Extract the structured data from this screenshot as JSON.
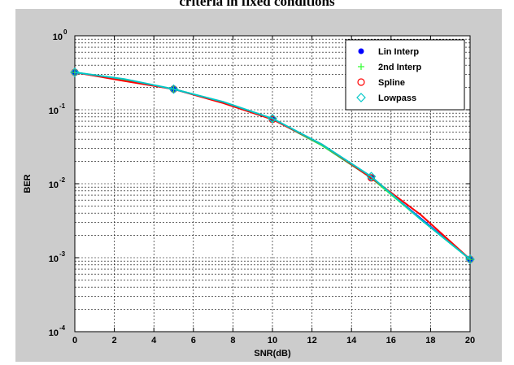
{
  "title": "criteria in fixed conditions",
  "chart_data": {
    "type": "line",
    "title": "criteria in fixed conditions",
    "xlabel": "SNR(dB)",
    "ylabel": "BER",
    "xlim": [
      0,
      20
    ],
    "ylim": [
      0.0001,
      1
    ],
    "yscale": "log",
    "grid": true,
    "legend_position": "top-right",
    "x_ticks": [
      "0",
      "2",
      "4",
      "6",
      "8",
      "10",
      "12",
      "14",
      "16",
      "18",
      "20"
    ],
    "y_ticks": [
      {
        "base": "10",
        "exp": "0",
        "value": 1
      },
      {
        "base": "10",
        "exp": "-1",
        "value": 0.1
      },
      {
        "base": "10",
        "exp": "-2",
        "value": 0.01
      },
      {
        "base": "10",
        "exp": "-3",
        "value": 0.001
      },
      {
        "base": "10",
        "exp": "-4",
        "value": 0.0001
      }
    ],
    "series": [
      {
        "name": "Lin Interp",
        "color": "#0000ff",
        "marker": "filled-dot",
        "x": [
          0,
          2.5,
          5,
          7.5,
          10,
          12.5,
          15,
          17.5,
          20
        ],
        "y": [
          0.32,
          0.25,
          0.19,
          0.125,
          0.075,
          0.033,
          0.012,
          0.0034,
          0.00095
        ],
        "marker_x": [
          0,
          5,
          10,
          15,
          20
        ],
        "marker_y": [
          0.32,
          0.19,
          0.075,
          0.012,
          0.00095
        ]
      },
      {
        "name": "2nd Interp",
        "color": "#33ff33",
        "marker": "plus",
        "x": [
          0,
          2.5,
          5,
          7.5,
          10,
          12.5,
          15,
          17.5,
          20
        ],
        "y": [
          0.32,
          0.255,
          0.19,
          0.127,
          0.075,
          0.033,
          0.012,
          0.0033,
          0.00095
        ],
        "marker_x": [
          0,
          5,
          10,
          15,
          20
        ],
        "marker_y": [
          0.32,
          0.19,
          0.075,
          0.012,
          0.00095
        ]
      },
      {
        "name": "Spline",
        "color": "#ff0000",
        "marker": "circle",
        "x": [
          0,
          2.5,
          5,
          7.5,
          10,
          12.5,
          15,
          17.5,
          20
        ],
        "y": [
          0.32,
          0.245,
          0.19,
          0.123,
          0.074,
          0.034,
          0.012,
          0.0038,
          0.00095
        ],
        "marker_x": [
          0,
          5,
          10,
          15,
          20
        ],
        "marker_y": [
          0.32,
          0.19,
          0.074,
          0.012,
          0.00095
        ]
      },
      {
        "name": "Lowpass",
        "color": "#00c8c8",
        "marker": "diamond",
        "x": [
          0,
          2.5,
          5,
          7.5,
          10,
          12.5,
          15,
          17.5,
          20
        ],
        "y": [
          0.32,
          0.26,
          0.19,
          0.128,
          0.076,
          0.034,
          0.0125,
          0.0033,
          0.00095
        ],
        "marker_x": [
          0,
          5,
          10,
          15,
          20
        ],
        "marker_y": [
          0.32,
          0.19,
          0.076,
          0.0125,
          0.00095
        ]
      }
    ]
  }
}
